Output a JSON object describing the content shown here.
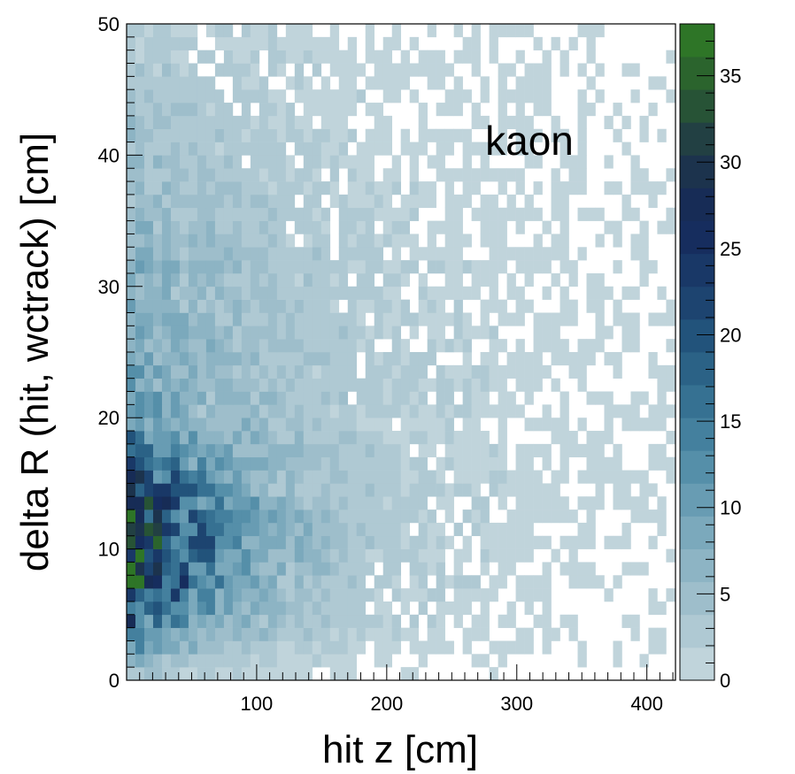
{
  "chart_data": {
    "type": "heatmap",
    "annotation": "kaon",
    "xlabel": "hit z [cm]",
    "ylabel": "delta R (hit, wctrack) [cm]",
    "xlim": [
      0,
      422
    ],
    "ylim": [
      0,
      50
    ],
    "x_ticks": [
      100,
      200,
      300,
      400
    ],
    "y_ticks": [
      0,
      10,
      20,
      30,
      40,
      50
    ],
    "colorbar": {
      "zlim": [
        0,
        38
      ],
      "ticks": [
        0,
        5,
        10,
        15,
        20,
        25,
        30,
        35
      ],
      "levels": 20
    },
    "binning": {
      "nx": 62,
      "ny": 50,
      "x_bin_width_cm": 6.8,
      "y_bin_width_cm": 1.0
    },
    "count_model": {
      "description": "approximate bin counts read from the color scale",
      "peak_region": {
        "z_cm": [
          0,
          70
        ],
        "deltaR_cm": [
          3,
          17
        ],
        "peak_count": 36
      },
      "profile_points": [
        {
          "z_cm": 20,
          "deltaR_cm": 10,
          "count": 32
        },
        {
          "z_cm": 50,
          "deltaR_cm": 10,
          "count": 24
        },
        {
          "z_cm": 100,
          "deltaR_cm": 10,
          "count": 14
        },
        {
          "z_cm": 150,
          "deltaR_cm": 10,
          "count": 9
        },
        {
          "z_cm": 200,
          "deltaR_cm": 10,
          "count": 6
        },
        {
          "z_cm": 300,
          "deltaR_cm": 10,
          "count": 2
        },
        {
          "z_cm": 50,
          "deltaR_cm": 30,
          "count": 5
        },
        {
          "z_cm": 50,
          "deltaR_cm": 45,
          "count": 3
        },
        {
          "z_cm": 400,
          "deltaR_cm": 40,
          "count": 1
        }
      ]
    },
    "palette": [
      "#c9d9df",
      "#a6c3cf",
      "#85afc0",
      "#5e96ae",
      "#3b7898",
      "#255a80",
      "#1a3d6b",
      "#14285a",
      "#1f3649",
      "#2a5c30",
      "#2f7d24"
    ]
  }
}
